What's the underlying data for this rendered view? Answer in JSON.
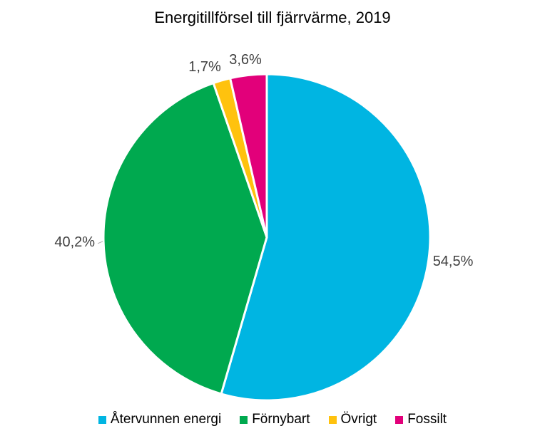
{
  "chart_data": {
    "type": "pie",
    "title": "Energitillförsel till fjärrvärme, 2019",
    "slices": [
      {
        "name": "Återvunnen energi",
        "value": 54.5,
        "label": "54,5%",
        "color": "#00B5E2"
      },
      {
        "name": "Förnybart",
        "value": 40.2,
        "label": "40,2%",
        "color": "#00A94F"
      },
      {
        "name": "Övrigt",
        "value": 1.7,
        "label": "1,7%",
        "color": "#FFC20E"
      },
      {
        "name": "Fossilt",
        "value": 3.6,
        "label": "3,6%",
        "color": "#E2007A"
      }
    ],
    "legend_position": "bottom"
  }
}
